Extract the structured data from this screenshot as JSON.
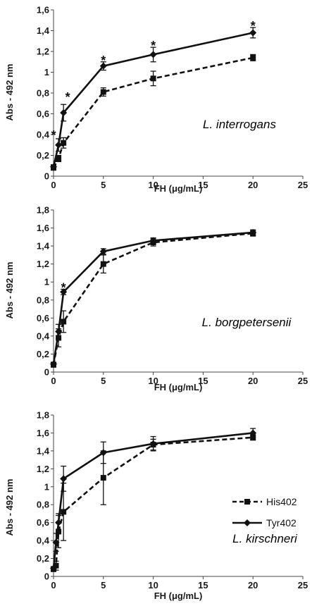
{
  "chart_data": [
    {
      "type": "line",
      "species_label": "L. interrogans",
      "xlabel": "FH (μg/mL)",
      "ylabel": "Abs - 492 nm",
      "xlim": [
        0,
        25
      ],
      "ylim": [
        0,
        1.6
      ],
      "x_ticks": [
        "0",
        "5",
        "10",
        "15",
        "20",
        "25"
      ],
      "y_ticks": [
        "0",
        "0,2",
        "0,4",
        "0,6",
        "0,8",
        "1",
        "1,2",
        "1,4",
        "1,6"
      ],
      "significance_marker": "*",
      "significant_x": [
        0.5,
        1,
        5,
        10,
        20
      ],
      "series": [
        {
          "name": "His402",
          "x": [
            0,
            0.5,
            1,
            5,
            10,
            20
          ],
          "y": [
            0.08,
            0.17,
            0.32,
            0.81,
            0.94,
            1.14
          ],
          "error": [
            0.02,
            0.03,
            0.05,
            0.04,
            0.07,
            0.03
          ]
        },
        {
          "name": "Tyr402",
          "x": [
            0,
            0.5,
            1,
            5,
            10,
            20
          ],
          "y": [
            0.09,
            0.3,
            0.61,
            1.06,
            1.17,
            1.38
          ],
          "error": [
            0.02,
            0.06,
            0.08,
            0.04,
            0.07,
            0.05
          ]
        }
      ]
    },
    {
      "type": "line",
      "species_label": "L. borgpetersenii",
      "xlabel": "FH (μg/mL)",
      "ylabel": "Abs - 492 nm",
      "xlim": [
        0,
        25
      ],
      "ylim": [
        0,
        1.8
      ],
      "x_ticks": [
        "0",
        "5",
        "10",
        "15",
        "20",
        "25"
      ],
      "y_ticks": [
        "0",
        "0,2",
        "0,4",
        "0,6",
        "0,8",
        "1",
        "1,2",
        "1,4",
        "1,6",
        "1,8"
      ],
      "significance_marker": "*",
      "significant_x": [
        1
      ],
      "series": [
        {
          "name": "His402",
          "x": [
            0,
            0.5,
            1,
            5,
            10,
            20
          ],
          "y": [
            0.08,
            0.38,
            0.56,
            1.2,
            1.44,
            1.54
          ],
          "error": [
            0.02,
            0.1,
            0.12,
            0.1,
            0.04,
            0.03
          ]
        },
        {
          "name": "Tyr402",
          "x": [
            0,
            0.5,
            1,
            5,
            10,
            20
          ],
          "y": [
            0.09,
            0.45,
            0.89,
            1.34,
            1.46,
            1.55
          ],
          "error": [
            0.02,
            0.08,
            0.03,
            0.03,
            0.03,
            0.03
          ]
        }
      ]
    },
    {
      "type": "line",
      "species_label": "L. kirschneri",
      "xlabel": "FH (μg/mL)",
      "ylabel": "Abs - 492 nm",
      "xlim": [
        0,
        25
      ],
      "ylim": [
        0,
        1.8
      ],
      "x_ticks": [
        "0",
        "5",
        "10",
        "15",
        "20",
        "25"
      ],
      "y_ticks": [
        "0",
        "0,2",
        "0,4",
        "0,6",
        "0,8",
        "1",
        "1,2",
        "1,4",
        "1,6",
        "1,8"
      ],
      "legend": {
        "position": "right",
        "entries": [
          "His402",
          "Tyr402"
        ]
      },
      "series": [
        {
          "name": "His402",
          "x": [
            0,
            0.25,
            0.5,
            1,
            5,
            10,
            20
          ],
          "y": [
            0.08,
            0.12,
            0.5,
            0.72,
            1.1,
            1.47,
            1.55
          ],
          "error": [
            0.02,
            0.05,
            0.18,
            0.32,
            0.3,
            0.06,
            0.03
          ]
        },
        {
          "name": "Tyr402",
          "x": [
            0,
            0.25,
            0.5,
            1,
            5,
            10,
            20
          ],
          "y": [
            0.09,
            0.38,
            0.6,
            1.09,
            1.38,
            1.48,
            1.6
          ],
          "error": [
            0.02,
            0.1,
            0.1,
            0.14,
            0.12,
            0.08,
            0.05
          ]
        }
      ]
    }
  ]
}
